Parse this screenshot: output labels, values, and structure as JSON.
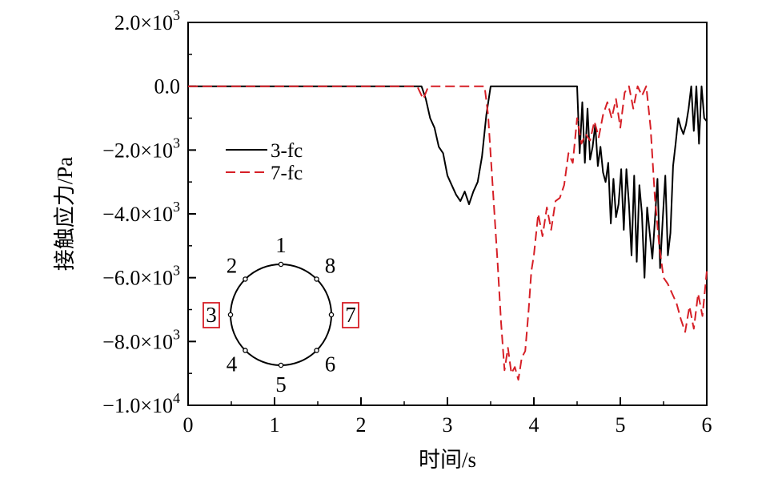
{
  "chart_data": {
    "type": "line",
    "xlabel": "时间/s",
    "ylabel": "接触应力/Pa",
    "xlim": [
      0,
      6
    ],
    "ylim": [
      -10000,
      2000
    ],
    "xticks": [
      0,
      1,
      2,
      3,
      4,
      5,
      6
    ],
    "xtick_labels": [
      "0",
      "1",
      "2",
      "3",
      "4",
      "5",
      "6"
    ],
    "yticks": [
      2000,
      0,
      -2000,
      -4000,
      -6000,
      -8000,
      -10000
    ],
    "ytick_labels": [
      {
        "mant": "2.0×10",
        "exp": "3"
      },
      {
        "mant": "0.0",
        "exp": ""
      },
      {
        "mant": "−2.0×10",
        "exp": "3"
      },
      {
        "mant": "−4.0×10",
        "exp": "3"
      },
      {
        "mant": "−6.0×10",
        "exp": "3"
      },
      {
        "mant": "−8.0×10",
        "exp": "3"
      },
      {
        "mant": "−1.0×10",
        "exp": "4"
      }
    ],
    "grid": false,
    "legend_position": "upper-left",
    "series": [
      {
        "name": "3-fc",
        "color": "#000000",
        "dash": "solid",
        "x": [
          0,
          2.7,
          2.75,
          2.8,
          2.85,
          2.9,
          2.95,
          3.0,
          3.05,
          3.1,
          3.15,
          3.2,
          3.25,
          3.3,
          3.35,
          3.4,
          3.45,
          3.5,
          3.55,
          4.5,
          4.53,
          4.56,
          4.59,
          4.62,
          4.65,
          4.68,
          4.71,
          4.74,
          4.77,
          4.8,
          4.83,
          4.86,
          4.89,
          4.92,
          4.95,
          4.98,
          5.01,
          5.04,
          5.07,
          5.1,
          5.13,
          5.16,
          5.19,
          5.22,
          5.25,
          5.28,
          5.31,
          5.34,
          5.37,
          5.4,
          5.43,
          5.46,
          5.49,
          5.52,
          5.55,
          5.58,
          5.61,
          5.64,
          5.67,
          5.7,
          5.73,
          5.76,
          5.79,
          5.82,
          5.85,
          5.88,
          5.91,
          5.94,
          5.97,
          6.0
        ],
        "y": [
          0,
          0,
          -400,
          -1000,
          -1300,
          -1900,
          -2100,
          -2800,
          -3100,
          -3400,
          -3600,
          -3300,
          -3700,
          -3300,
          -3000,
          -2200,
          -900,
          0,
          0,
          0,
          -2100,
          -500,
          -2400,
          -700,
          -2300,
          -1900,
          -1200,
          -2500,
          -1900,
          -2700,
          -3000,
          -2400,
          -4300,
          -2900,
          -4100,
          -3700,
          -2600,
          -4500,
          -2600,
          -3700,
          -5300,
          -2800,
          -5500,
          -3100,
          -4000,
          -6000,
          -3800,
          -4600,
          -5400,
          -4200,
          -2900,
          -5700,
          -4200,
          -2800,
          -5300,
          -4600,
          -2500,
          -1800,
          -1000,
          -1300,
          -1500,
          -1200,
          -700,
          0,
          -1400,
          0,
          -1800,
          0,
          -1000,
          -1100
        ]
      },
      {
        "name": "7-fc",
        "color": "#d61f26",
        "dash": "dashed",
        "x": [
          0,
          2.65,
          2.72,
          2.78,
          3.43,
          3.47,
          3.52,
          3.58,
          3.62,
          3.66,
          3.7,
          3.74,
          3.78,
          3.82,
          3.86,
          3.9,
          3.94,
          3.97,
          4.0,
          4.05,
          4.1,
          4.15,
          4.2,
          4.25,
          4.3,
          4.35,
          4.4,
          4.45,
          4.5,
          4.55,
          4.6,
          4.65,
          4.7,
          4.75,
          4.8,
          4.85,
          4.9,
          4.95,
          5.0,
          5.05,
          5.1,
          5.15,
          5.2,
          5.25,
          5.3,
          5.35,
          5.4,
          5.45,
          5.5,
          5.55,
          5.6,
          5.65,
          5.7,
          5.75,
          5.8,
          5.85,
          5.9,
          5.95,
          6.0
        ],
        "y": [
          0,
          0,
          -400,
          0,
          0,
          -900,
          -3000,
          -5500,
          -7400,
          -8900,
          -8200,
          -9000,
          -8800,
          -9200,
          -8500,
          -8300,
          -7000,
          -5800,
          -5300,
          -4000,
          -4700,
          -3800,
          -4500,
          -3600,
          -3500,
          -3100,
          -2100,
          -2400,
          -1000,
          -1800,
          -1500,
          -1700,
          -1100,
          -1600,
          -900,
          -500,
          -1000,
          -400,
          -1300,
          -200,
          0,
          -700,
          0,
          -300,
          0,
          -1300,
          -3500,
          -5000,
          -6000,
          -6200,
          -6500,
          -6800,
          -7300,
          -7700,
          -6900,
          -7600,
          -6500,
          -7200,
          -5800
        ]
      }
    ],
    "inset_diagram": {
      "labels": [
        "1",
        "2",
        "3",
        "4",
        "5",
        "6",
        "7",
        "8"
      ],
      "highlighted": [
        "3",
        "7"
      ],
      "highlight_color": "#d61f26"
    }
  }
}
